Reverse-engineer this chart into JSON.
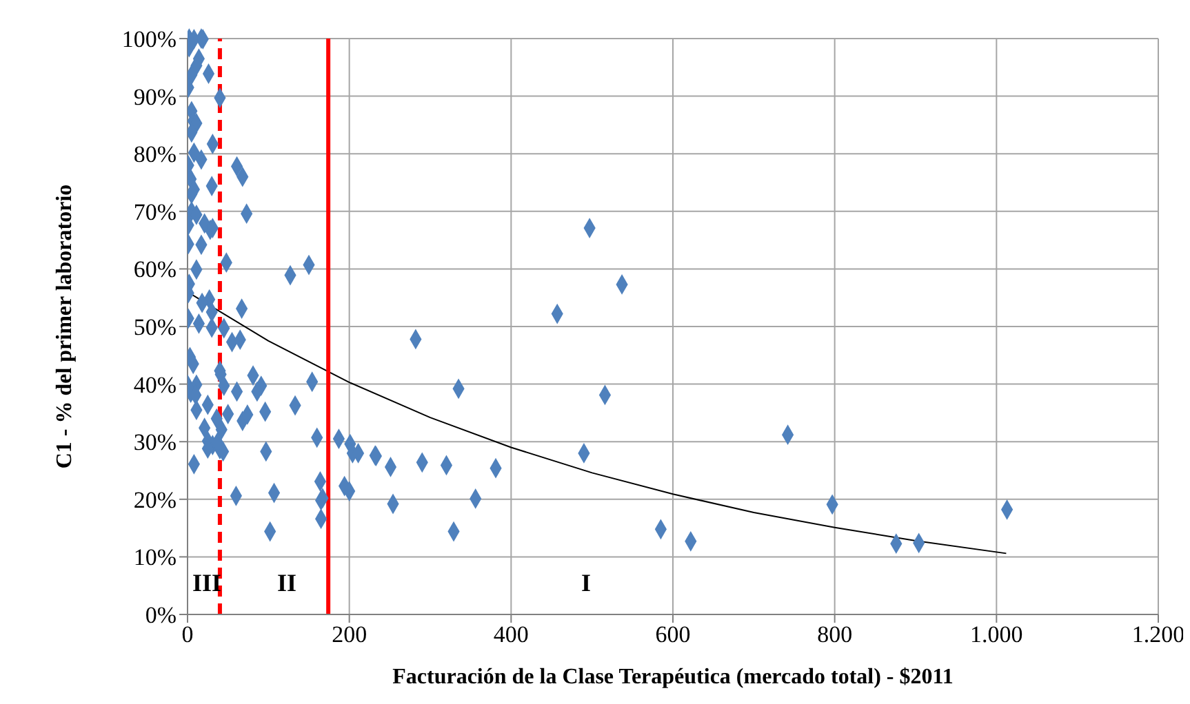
{
  "chart_data": {
    "type": "scatter",
    "xlabel": "Facturación de la Clase Terapéutica (mercado total) - $2011",
    "ylabel": "C1 - % del primer laboratorio",
    "xlim": [
      0,
      1200
    ],
    "xticks": [
      0,
      200,
      400,
      600,
      800,
      {
        "value": 1000,
        "label": "1.000"
      },
      {
        "value": 1200,
        "label": "1.200"
      }
    ],
    "ylim": [
      0,
      100
    ],
    "yticks": [
      {
        "value": 0,
        "label": "0%"
      },
      {
        "value": 10,
        "label": "10%"
      },
      {
        "value": 20,
        "label": "20%"
      },
      {
        "value": 30,
        "label": "30%"
      },
      {
        "value": 40,
        "label": "40%"
      },
      {
        "value": 50,
        "label": "50%"
      },
      {
        "value": 60,
        "label": "60%"
      },
      {
        "value": 70,
        "label": "70%"
      },
      {
        "value": 80,
        "label": "80%"
      },
      {
        "value": 90,
        "label": "90%"
      },
      {
        "value": 100,
        "label": "100%"
      }
    ],
    "grid": true,
    "series": [
      {
        "color": "#4f81bd",
        "marker": "diamond",
        "x": [
          2,
          17,
          2,
          8,
          19,
          14,
          11,
          5,
          26,
          1,
          40,
          5,
          7,
          11,
          5,
          31,
          8,
          17,
          1,
          61,
          68,
          4,
          30,
          8,
          5,
          73,
          5,
          11,
          1,
          21,
          28,
          31,
          1,
          17,
          48,
          150,
          127,
          11,
          2,
          1,
          27,
          18,
          67,
          30,
          1,
          14,
          30,
          45,
          55,
          65,
          3,
          7,
          40,
          41,
          0,
          11,
          4,
          10,
          45,
          61,
          81,
          91,
          86,
          154,
          11,
          25,
          36,
          50,
          68,
          74,
          96,
          133,
          21,
          42,
          25,
          31,
          25,
          40,
          44,
          37,
          8,
          97,
          160,
          187,
          201,
          204,
          232,
          164,
          167,
          165,
          194,
          200,
          60,
          107,
          165,
          102,
          497,
          537,
          457,
          282,
          335,
          516,
          211,
          233,
          251,
          290,
          320,
          381,
          490,
          254,
          356,
          329,
          585,
          622,
          742,
          797,
          876,
          904,
          1013
        ],
        "values": [
          100,
          100,
          98.5,
          99.9,
          99.9,
          96.5,
          95.3,
          93.7,
          93.9,
          91.5,
          89.7,
          87.4,
          85.7,
          85.3,
          83.7,
          81.7,
          80.2,
          79,
          78,
          77.8,
          76,
          75.6,
          74.4,
          73.8,
          73,
          69.6,
          70,
          69.4,
          67.6,
          67.9,
          66.8,
          67.1,
          64.3,
          64.2,
          61.1,
          60.7,
          58.9,
          59.9,
          57.4,
          55.8,
          54.7,
          54.1,
          53.1,
          52.5,
          51.4,
          50.5,
          49.8,
          49.7,
          47.3,
          47.7,
          44.7,
          43.5,
          42.3,
          41.7,
          39.9,
          39.9,
          38.5,
          38.1,
          39.7,
          38.7,
          41.5,
          39.7,
          38.7,
          40.4,
          35.5,
          36.4,
          34,
          34.8,
          33.6,
          34.7,
          35.2,
          36.3,
          32.4,
          32.1,
          30.1,
          29.4,
          28.8,
          28.7,
          28.3,
          29.9,
          26.1,
          28.3,
          30.7,
          30.5,
          29.6,
          28,
          27.6,
          23.1,
          20.2,
          19.8,
          22.3,
          21.4,
          20.6,
          21.1,
          16.6,
          14.4,
          67.1,
          57.3,
          52.2,
          47.8,
          39.2,
          38.1,
          28,
          27.5,
          25.6,
          26.4,
          25.9,
          25.4,
          28,
          19.2,
          20.1,
          14.4,
          14.8,
          12.7,
          31.2,
          19.1,
          12.3,
          12.4,
          18.2
        ]
      },
      {
        "type": "line",
        "color": "#000000",
        "x": [
          0,
          100,
          200,
          300,
          400,
          500,
          600,
          700,
          800,
          900,
          1012
        ],
        "values": [
          56,
          47.5,
          40.3,
          34.2,
          29,
          24.6,
          20.9,
          17.7,
          15.1,
          12.8,
          10.6
        ]
      }
    ],
    "ref_lines": [
      {
        "axis": "x",
        "value": 40,
        "color": "#ff0000",
        "line_style": "dashed"
      },
      {
        "axis": "x",
        "value": 174,
        "color": "#ff0000",
        "line_style": "solid"
      }
    ],
    "annotations": [
      "III",
      "II",
      "I"
    ]
  }
}
